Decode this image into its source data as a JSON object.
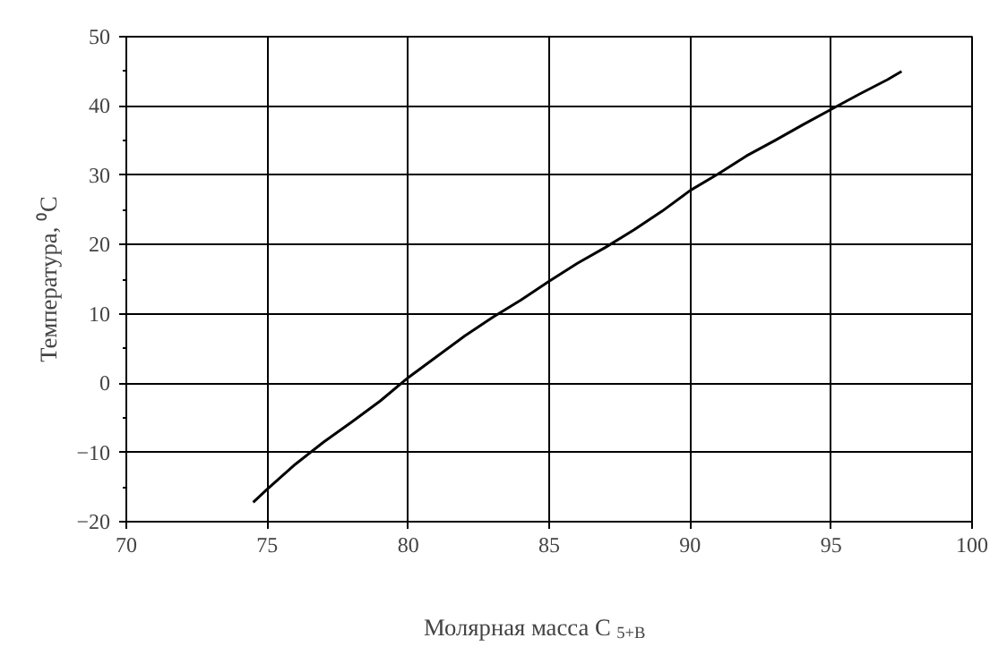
{
  "chart_data": {
    "type": "line",
    "xlabel": "Молярная масса C$_{5+В}$",
    "ylabel": "Температура, ⁰С",
    "xlim": [
      70,
      100
    ],
    "ylim": [
      -20,
      50
    ],
    "xticks": [
      70,
      75,
      80,
      85,
      90,
      95,
      100
    ],
    "yticks": [
      -20,
      -10,
      0,
      10,
      20,
      30,
      40,
      50
    ],
    "grid": true,
    "series": [
      {
        "color": "#000000",
        "x": [
          74.5,
          75,
          76,
          77,
          78,
          79,
          80,
          81,
          82,
          83,
          84,
          85,
          86,
          87,
          88,
          89,
          90,
          91,
          92,
          93,
          94,
          95,
          96,
          97,
          97.5
        ],
        "values": [
          -17.2,
          -15.3,
          -11.7,
          -8.5,
          -5.6,
          -2.6,
          0.8,
          3.8,
          6.8,
          9.5,
          12.0,
          14.7,
          17.3,
          19.6,
          22.1,
          24.8,
          27.8,
          30.2,
          32.8,
          35.0,
          37.3,
          39.5,
          41.7,
          43.8,
          45.0
        ]
      }
    ]
  }
}
